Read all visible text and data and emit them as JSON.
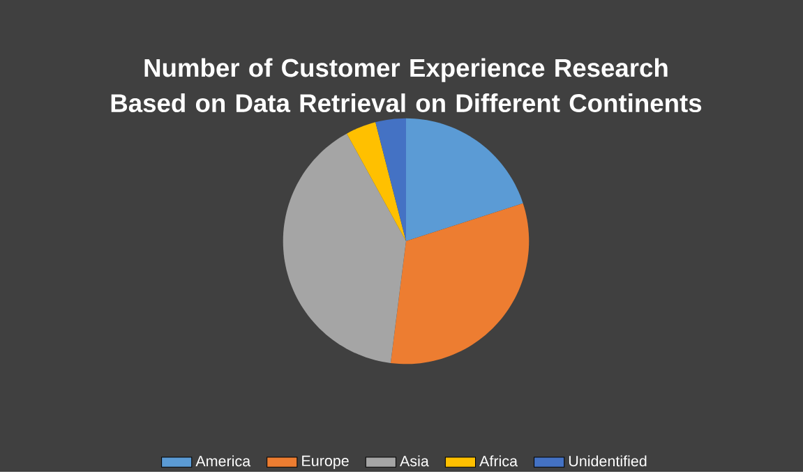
{
  "chart_data": {
    "type": "pie",
    "title": "Number of Customer Experience Research Based on Data Retrieval on Different Continents",
    "categories": [
      "America",
      "Europe",
      "Asia",
      "Africa",
      "Unidentified"
    ],
    "values": [
      20,
      32,
      40,
      4,
      4
    ],
    "colors": [
      "#5b9bd5",
      "#ed7d31",
      "#a5a5a5",
      "#ffc000",
      "#4472c4"
    ],
    "legend": "bottom"
  }
}
